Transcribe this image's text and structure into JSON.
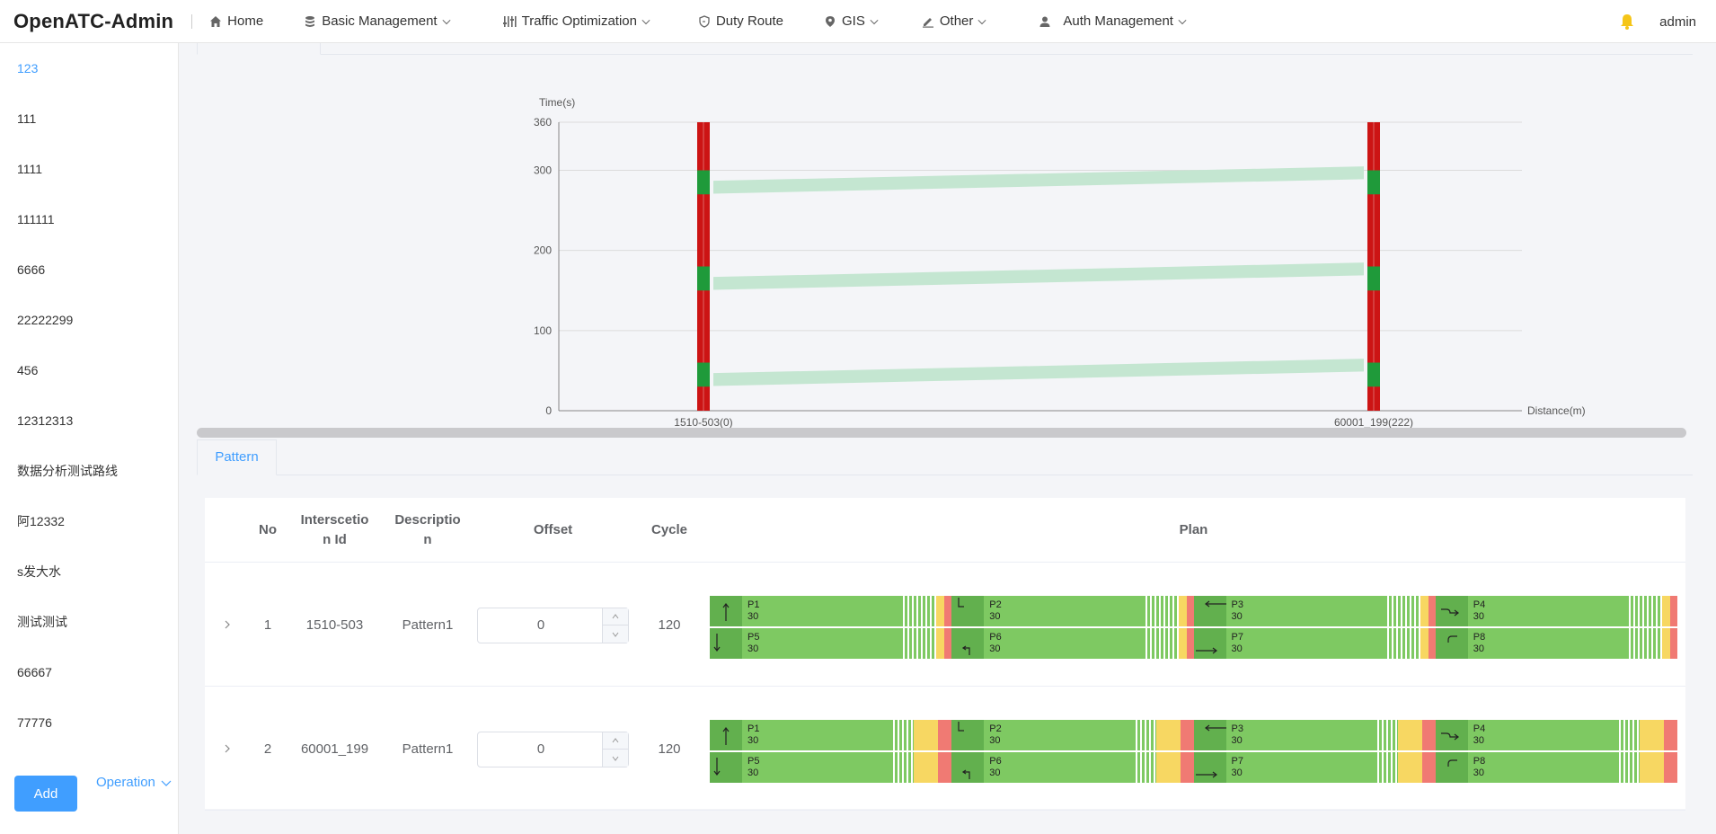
{
  "header": {
    "logo": "OpenATC-Admin",
    "nav": [
      {
        "label": "Home",
        "icon": "home-icon"
      },
      {
        "label": "Basic Management",
        "icon": "database-icon"
      },
      {
        "label": "Traffic Optimization",
        "icon": "equalizer-icon"
      },
      {
        "label": "Duty Route",
        "icon": "shield-icon"
      },
      {
        "label": "GIS",
        "icon": "location-pin-icon"
      },
      {
        "label": "Other",
        "icon": "edit-icon"
      },
      {
        "label": "Auth Management",
        "icon": "user-icon"
      }
    ],
    "user": "admin"
  },
  "sidebar": {
    "routes": [
      "123",
      "111",
      "1111",
      "111111",
      "6666",
      "22222299",
      "456",
      "12312313",
      "数据分析测试路线",
      "阿12332",
      "s发大水",
      "测试测试",
      "66667",
      "77776"
    ],
    "active_index": 0,
    "add_label": "Add",
    "operation_label": "Operation"
  },
  "chart_data": {
    "type": "time-space diagram",
    "ylabel": "Time(s)",
    "xlabel": "Distance(m)",
    "ylim": [
      0,
      360
    ],
    "yticks": [
      0,
      100,
      200,
      300,
      360
    ],
    "intersections": [
      {
        "label": "1510-503(0)",
        "distance": 0,
        "green_windows": [
          [
            30,
            60
          ],
          [
            150,
            180
          ],
          [
            270,
            300
          ]
        ]
      },
      {
        "label": "60001_199(222)",
        "distance": 222,
        "green_windows": [
          [
            30,
            60
          ],
          [
            150,
            180
          ],
          [
            270,
            300
          ]
        ]
      }
    ],
    "bands": [
      {
        "start": [
          0,
          30
        ],
        "end": [
          222,
          48
        ]
      },
      {
        "start": [
          0,
          150
        ],
        "end": [
          222,
          168
        ]
      },
      {
        "start": [
          0,
          270
        ],
        "end": [
          222,
          288
        ]
      }
    ],
    "colors": {
      "red": "#cc1414",
      "green": "#1f9a3a",
      "band": "#c4e6d1",
      "grid": "#dcdcdc"
    }
  },
  "pattern_tab": "Pattern",
  "table": {
    "headers": {
      "no": "No",
      "intersection_id_1": "Interscetio",
      "intersection_id_2": "n Id",
      "description_1": "Descriptio",
      "description_2": "n",
      "offset": "Offset",
      "cycle": "Cycle",
      "plan": "Plan"
    },
    "rows": [
      {
        "no": "1",
        "intersection_id": "1510-503",
        "description": "Pattern1",
        "offset": "0",
        "cycle": "120",
        "ring1": [
          {
            "p": "P1",
            "t": "30"
          },
          {
            "p": "P2",
            "t": "30"
          },
          {
            "p": "P3",
            "t": "30"
          },
          {
            "p": "P4",
            "t": "30"
          }
        ],
        "ring2": [
          {
            "p": "P5",
            "t": "30"
          },
          {
            "p": "P6",
            "t": "30"
          },
          {
            "p": "P7",
            "t": "30"
          },
          {
            "p": "P8",
            "t": "30"
          }
        ],
        "yellow_wide": false
      },
      {
        "no": "2",
        "intersection_id": "60001_199",
        "description": "Pattern1",
        "offset": "0",
        "cycle": "120",
        "ring1": [
          {
            "p": "P1",
            "t": "30"
          },
          {
            "p": "P2",
            "t": "30"
          },
          {
            "p": "P3",
            "t": "30"
          },
          {
            "p": "P4",
            "t": "30"
          }
        ],
        "ring2": [
          {
            "p": "P5",
            "t": "30"
          },
          {
            "p": "P6",
            "t": "30"
          },
          {
            "p": "P7",
            "t": "30"
          },
          {
            "p": "P8",
            "t": "30"
          }
        ],
        "yellow_wide": true
      }
    ]
  },
  "plan_colors": {
    "green": "#7ec962",
    "dark_green": "#62b04e",
    "yellow": "#f7d762",
    "red": "#f07a73"
  }
}
